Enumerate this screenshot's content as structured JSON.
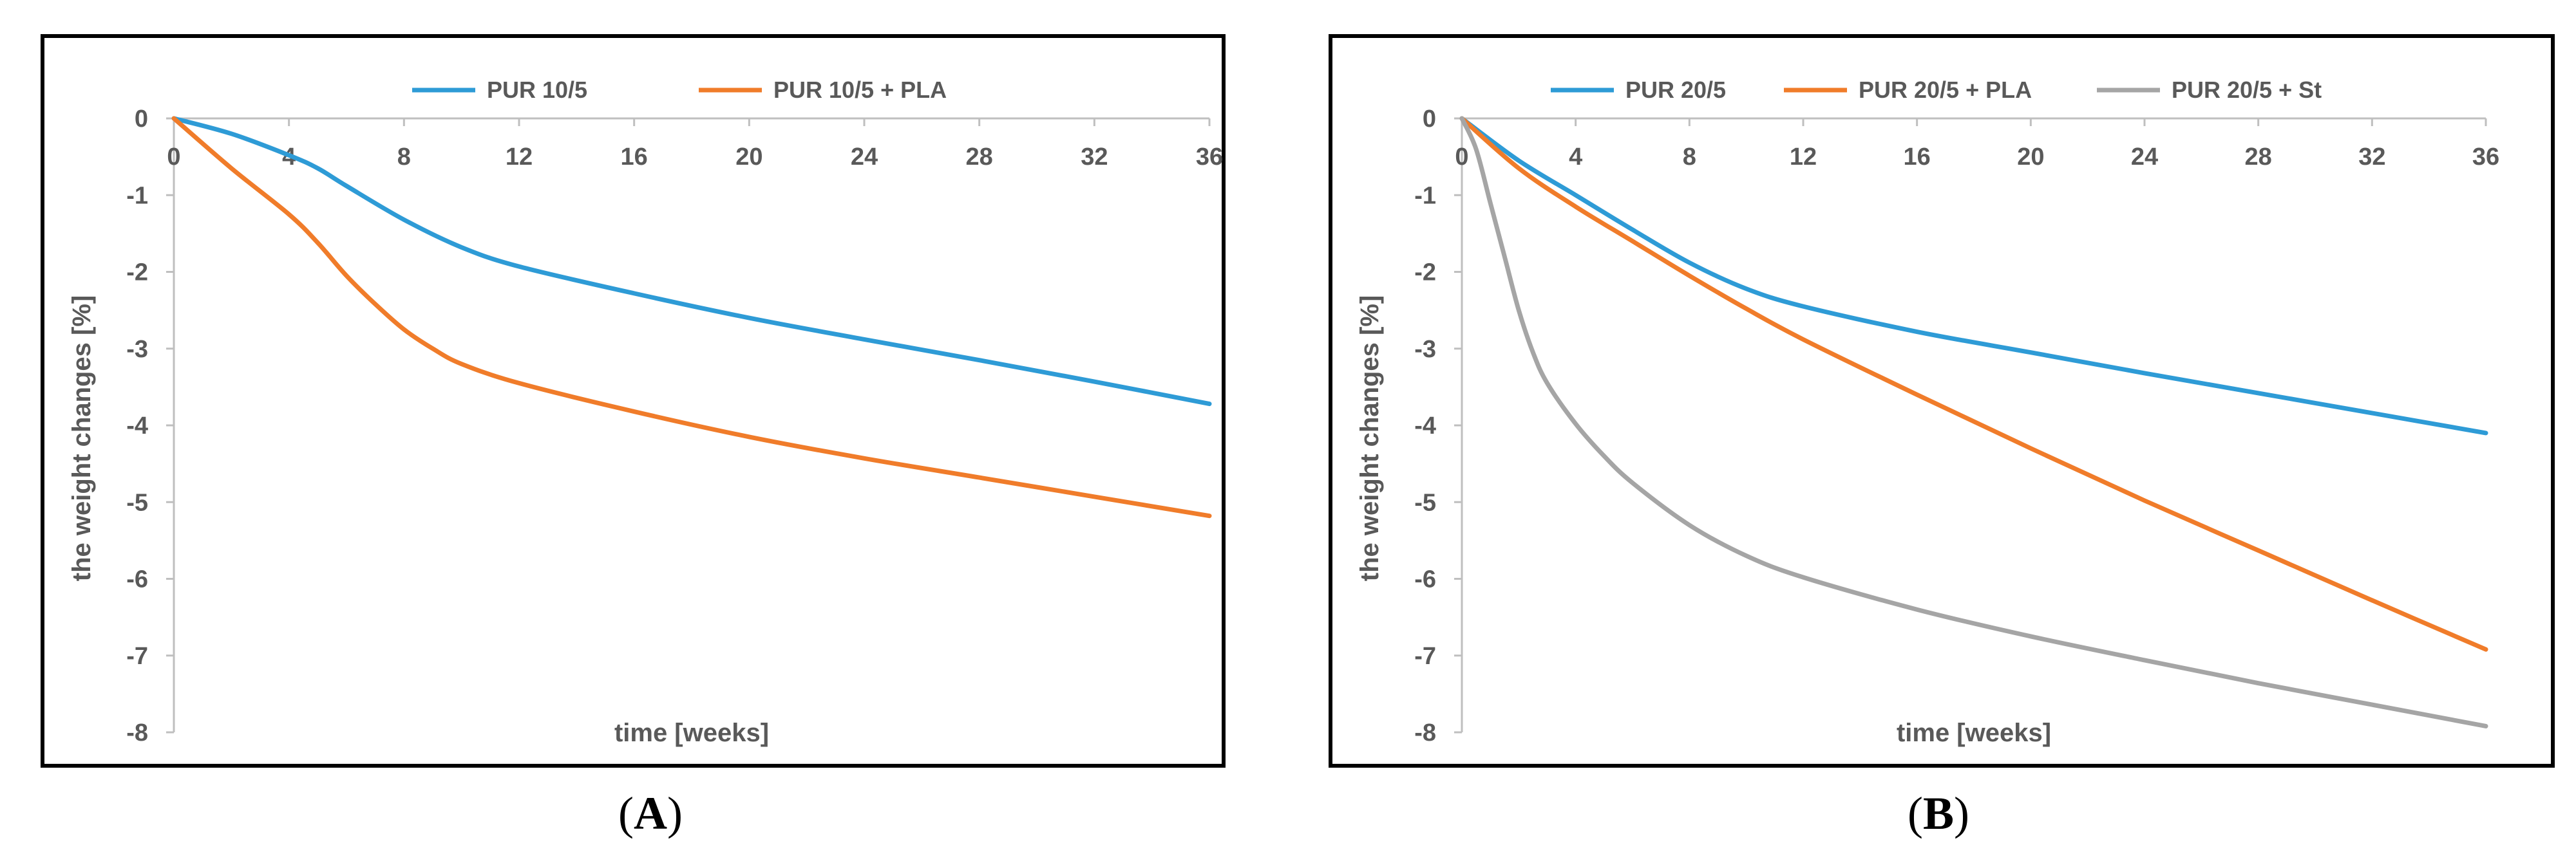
{
  "chart_data": [
    {
      "type": "line",
      "panel_label": "A",
      "panel_label_prefix": "(",
      "panel_label_suffix": ")",
      "xlabel": "time [weeks]",
      "ylabel": "the weight changes [%]",
      "xlim": [
        0,
        36
      ],
      "ylim": [
        -8,
        0
      ],
      "xticks": [
        0,
        4,
        8,
        12,
        16,
        20,
        24,
        28,
        32,
        36
      ],
      "yticks": [
        0,
        -1,
        -2,
        -3,
        -4,
        -5,
        -6,
        -7,
        -8
      ],
      "grid": false,
      "legend_position": "top",
      "series": [
        {
          "name": "PUR 10/5",
          "color": "#2E9BD6",
          "x": [
            0,
            2,
            4,
            5,
            6,
            8,
            10,
            12,
            16,
            20,
            24,
            28,
            32,
            36
          ],
          "y": [
            0,
            -0.2,
            -0.48,
            -0.65,
            -0.88,
            -1.32,
            -1.68,
            -1.93,
            -2.28,
            -2.6,
            -2.88,
            -3.15,
            -3.43,
            -3.72
          ]
        },
        {
          "name": "PUR 10/5 + PLA",
          "color": "#F07C2A",
          "x": [
            0,
            2,
            4,
            5,
            6,
            7,
            8,
            9,
            10,
            12,
            16,
            20,
            24,
            28,
            32,
            36
          ],
          "y": [
            0,
            -0.65,
            -1.25,
            -1.62,
            -2.05,
            -2.42,
            -2.75,
            -3.0,
            -3.2,
            -3.45,
            -3.82,
            -4.15,
            -4.43,
            -4.68,
            -4.93,
            -5.18
          ]
        }
      ]
    },
    {
      "type": "line",
      "panel_label": "B",
      "panel_label_prefix": "(",
      "panel_label_suffix": ")",
      "xlabel": "time [weeks]",
      "ylabel": "the weight changes [%]",
      "xlim": [
        0,
        36
      ],
      "ylim": [
        -8,
        0
      ],
      "xticks": [
        0,
        4,
        8,
        12,
        16,
        20,
        24,
        28,
        32,
        36
      ],
      "yticks": [
        0,
        -1,
        -2,
        -3,
        -4,
        -5,
        -6,
        -7,
        -8
      ],
      "grid": false,
      "legend_position": "top",
      "series": [
        {
          "name": "PUR 20/5",
          "color": "#2E9BD6",
          "x": [
            0,
            2,
            4,
            6,
            8,
            10,
            12,
            16,
            20,
            24,
            28,
            32,
            36
          ],
          "y": [
            0,
            -0.55,
            -1.0,
            -1.45,
            -1.88,
            -2.22,
            -2.45,
            -2.78,
            -3.05,
            -3.32,
            -3.58,
            -3.84,
            -4.1
          ]
        },
        {
          "name": "PUR 20/5 + PLA",
          "color": "#F07C2A",
          "x": [
            0,
            2,
            4,
            6,
            8,
            10,
            12,
            16,
            20,
            24,
            28,
            32,
            36
          ],
          "y": [
            0,
            -0.65,
            -1.15,
            -1.6,
            -2.05,
            -2.48,
            -2.88,
            -3.6,
            -4.3,
            -4.98,
            -5.63,
            -6.28,
            -6.92
          ]
        },
        {
          "name": "PUR 20/5 + St",
          "color": "#A5A5A5",
          "x": [
            0,
            0.5,
            1,
            1.5,
            2,
            2.5,
            3,
            4,
            5,
            6,
            8,
            10,
            12,
            16,
            20,
            24,
            28,
            32,
            36
          ],
          "y": [
            0,
            -0.4,
            -1.1,
            -1.8,
            -2.5,
            -3.05,
            -3.45,
            -3.98,
            -4.4,
            -4.75,
            -5.3,
            -5.7,
            -5.98,
            -6.4,
            -6.75,
            -7.06,
            -7.36,
            -7.64,
            -7.92
          ]
        }
      ]
    }
  ]
}
